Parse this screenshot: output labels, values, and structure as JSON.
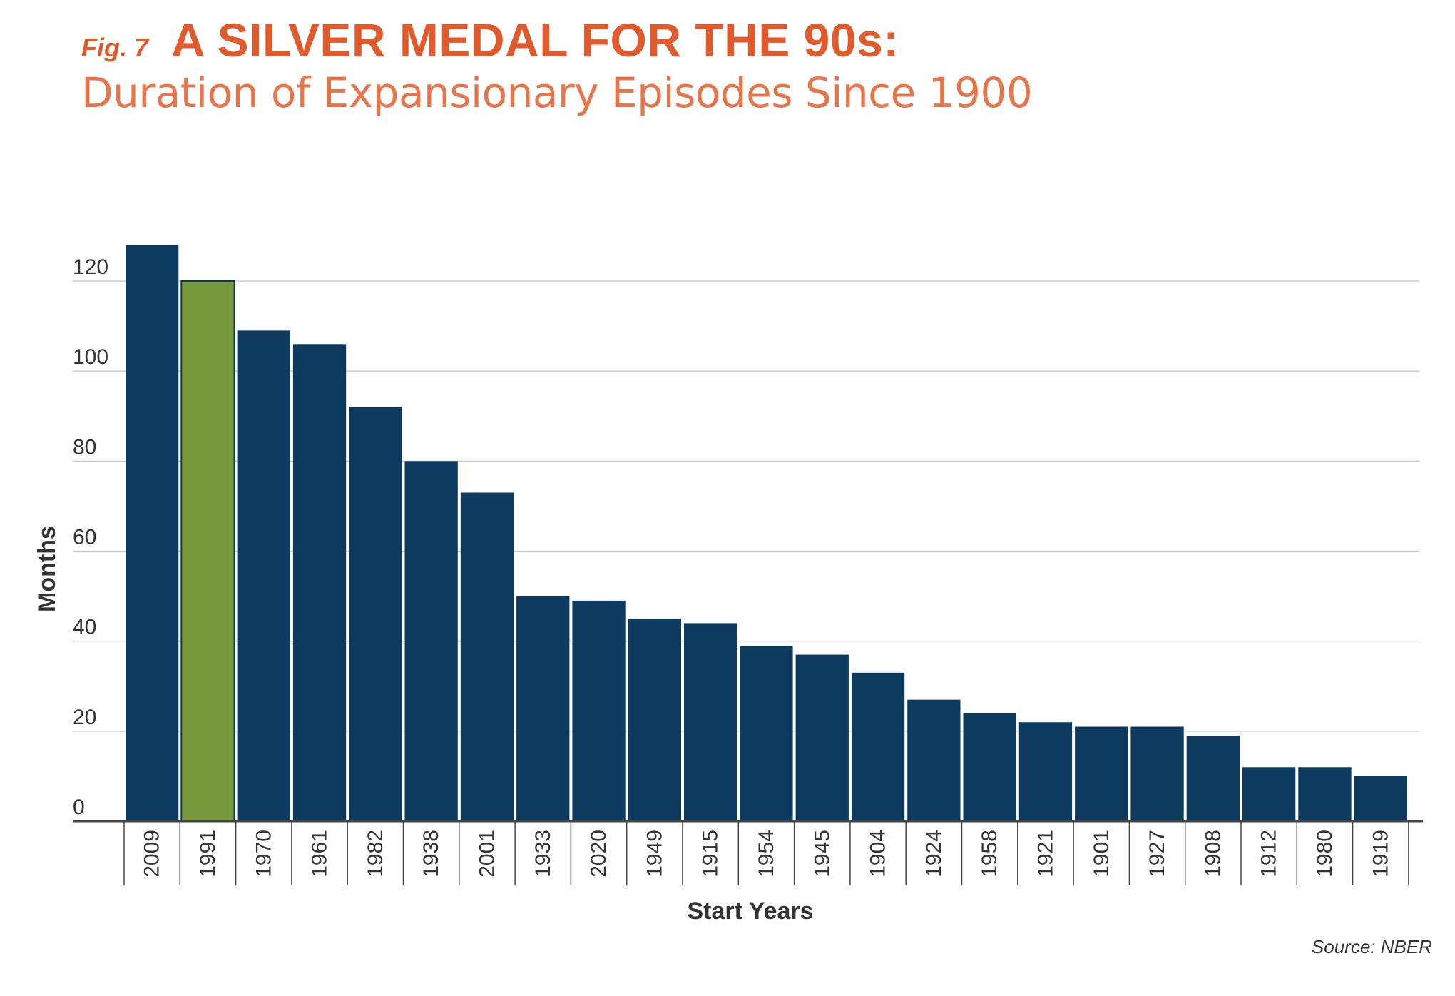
{
  "header": {
    "fig_label": "Fig. 7",
    "title": "A SILVER MEDAL FOR THE 90s:",
    "subtitle": "Duration of Expansionary Episodes Since 1900"
  },
  "source": "Source: NBER",
  "colors": {
    "title": "#e05a2b",
    "subtitle": "#e8744a",
    "bar_default": "#0d3a5f",
    "bar_highlight": "#77993c",
    "gridline": "#cccccc",
    "axis": "#444444",
    "text": "#333333"
  },
  "chart_data": {
    "type": "bar",
    "title": "A SILVER MEDAL FOR THE 90s:",
    "subtitle": "Duration of Expansionary Episodes Since 1900",
    "xlabel": "Start Years",
    "ylabel": "Months",
    "ylim": [
      0,
      120
    ],
    "yticks": [
      0,
      20,
      40,
      60,
      80,
      100,
      120
    ],
    "grid": true,
    "highlight_category": "1991",
    "categories": [
      "2009",
      "1991",
      "1970",
      "1961",
      "1982",
      "1938",
      "2001",
      "1933",
      "2020",
      "1949",
      "1915",
      "1954",
      "1945",
      "1904",
      "1924",
      "1958",
      "1921",
      "1901",
      "1927",
      "1908",
      "1912",
      "1980",
      "1919"
    ],
    "values": [
      128,
      120,
      109,
      106,
      92,
      80,
      73,
      50,
      49,
      45,
      44,
      39,
      37,
      33,
      27,
      24,
      22,
      21,
      21,
      19,
      12,
      12,
      10
    ]
  }
}
